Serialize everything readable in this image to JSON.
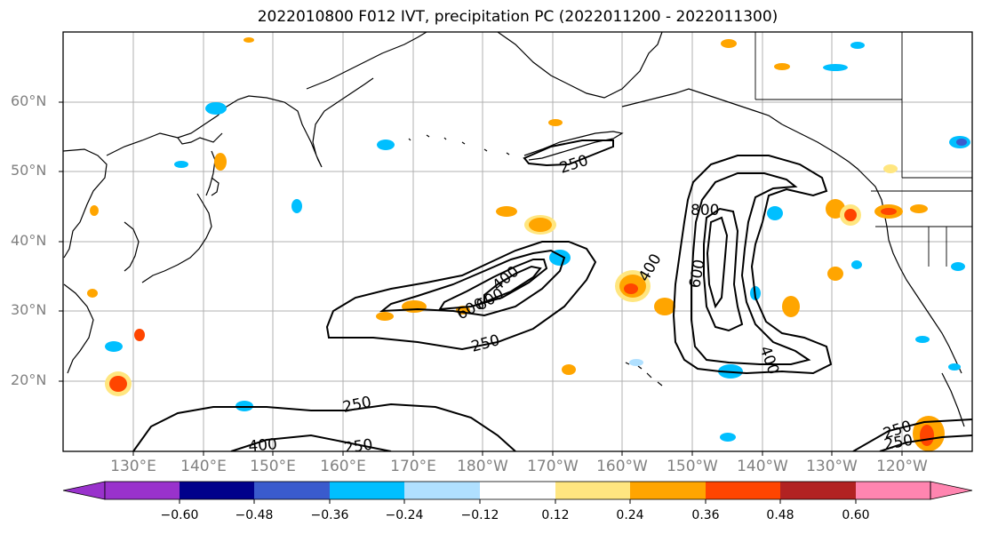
{
  "title": "2022010800 F012 IVT, precipitation PC (2022011200 - 2022011300)",
  "lat_labels": [
    "60°N",
    "50°N",
    "40°N",
    "30°N",
    "20°N"
  ],
  "lon_labels": [
    "130°E",
    "140°E",
    "150°E",
    "160°E",
    "170°E",
    "180°W",
    "170°W",
    "160°W",
    "150°W",
    "140°W",
    "130°W",
    "120°W"
  ],
  "contour_labels": {
    "c250a": "250",
    "c250b": "250",
    "c250c": "250",
    "c250d": "250",
    "c250e": "250",
    "c250f": "250",
    "c400a": "400",
    "c400b": "400",
    "c400c": "400",
    "c400d": "400",
    "c600a": "600",
    "c600b": "600",
    "c600c": "600",
    "c800a": "800"
  },
  "colorbar": {
    "tick_labels": [
      "−0.60",
      "−0.48",
      "−0.36",
      "−0.24",
      "−0.12",
      "0.12",
      "0.24",
      "0.36",
      "0.48",
      "0.60"
    ],
    "colors": [
      "#9932cc",
      "#00008b",
      "#3a5bcd",
      "#00bfff",
      "#b0e0ff",
      "#ffffff",
      "#ffe680",
      "#ffa500",
      "#ff4500",
      "#b22222",
      "#ff85b0"
    ]
  }
}
